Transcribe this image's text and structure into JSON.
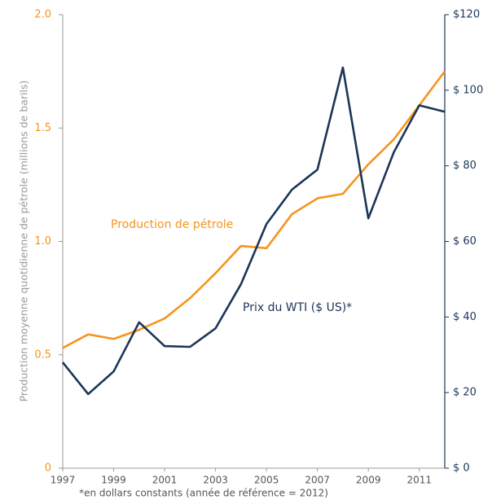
{
  "chart_data": {
    "type": "line",
    "ylabel": "Production moyenne quotidienne de pétrole (millions de barils)",
    "footnote": "*en dollars constants (année de référence = 2012)",
    "x": [
      1997,
      1998,
      1999,
      2000,
      2001,
      2002,
      2003,
      2004,
      2005,
      2006,
      2007,
      2008,
      2009,
      2010,
      2011,
      2012
    ],
    "xlim": [
      1997,
      2012
    ],
    "xticks": [
      1997,
      1999,
      2001,
      2003,
      2005,
      2007,
      2009,
      2011
    ],
    "ylim": [
      0,
      2
    ],
    "yticks": [
      0,
      0.5,
      {
        "value": 1,
        "label": "1.0"
      },
      1.5,
      {
        "value": 2,
        "label": "2.0"
      }
    ],
    "y2lim": [
      0,
      120
    ],
    "y2ticks": [
      {
        "value": 0,
        "label": "$ 0"
      },
      {
        "value": 20,
        "label": "$ 20"
      },
      {
        "value": 40,
        "label": "$ 40"
      },
      {
        "value": 60,
        "label": "$ 60"
      },
      {
        "value": 80,
        "label": "$ 80"
      },
      {
        "value": 100,
        "label": "$ 100"
      },
      {
        "value": 120,
        "label": "$120"
      }
    ],
    "series": [
      {
        "name": "Production de pétrole",
        "color": "#f7941d",
        "values": [
          0.53,
          0.59,
          0.57,
          0.61,
          0.66,
          0.75,
          0.86,
          0.98,
          0.97,
          1.12,
          1.19,
          1.21,
          1.34,
          1.45,
          1.6,
          1.75
        ]
      },
      {
        "name": "Prix du WTI ($ US)*",
        "color": "#1c3557",
        "axis": "y2",
        "values": [
          28,
          19.6,
          25.6,
          38.6,
          32.3,
          32.1,
          37,
          48.7,
          64.6,
          73.7,
          79,
          106,
          66.1,
          83.6,
          96,
          94.3
        ]
      }
    ]
  }
}
